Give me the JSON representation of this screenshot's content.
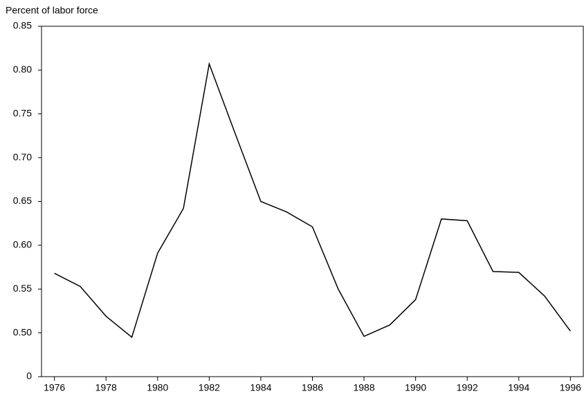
{
  "chart_data": {
    "type": "line",
    "y_axis_label": "Percent of labor force",
    "x": [
      1976,
      1977,
      1978,
      1979,
      1980,
      1981,
      1982,
      1983,
      1984,
      1985,
      1986,
      1987,
      1988,
      1989,
      1990,
      1991,
      1992,
      1993,
      1994,
      1995,
      1996
    ],
    "series": [
      {
        "color": "#000000",
        "values": [
          0.568,
          0.553,
          0.519,
          0.495,
          0.591,
          0.642,
          0.807,
          0.728,
          0.65,
          0.638,
          0.621,
          0.55,
          0.496,
          0.509,
          0.538,
          0.63,
          0.628,
          0.57,
          0.569,
          0.542,
          0.502
        ]
      }
    ],
    "xlim": [
      1975.5,
      1996.5
    ],
    "xticks": [
      1976,
      1978,
      1980,
      1982,
      1984,
      1986,
      1988,
      1990,
      1992,
      1994,
      1996
    ],
    "ylim": [
      0.45,
      0.85
    ],
    "yticks": [
      0,
      {
        "value": 0.5,
        "label": "0.50"
      },
      0.55,
      {
        "value": 0.6,
        "label": "0.60"
      },
      0.65,
      {
        "value": 0.7,
        "label": "0.70"
      },
      0.75,
      {
        "value": 0.8,
        "label": "0.80"
      },
      0.85
    ],
    "axis_break": true,
    "grid": false
  }
}
